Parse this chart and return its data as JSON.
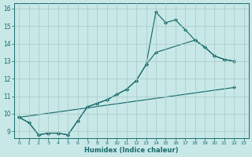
{
  "xlabel": "Humidex (Indice chaleur)",
  "xlim": [
    -0.5,
    23.5
  ],
  "ylim": [
    8.6,
    16.3
  ],
  "yticks": [
    9,
    10,
    11,
    12,
    13,
    14,
    15,
    16
  ],
  "xticks": [
    0,
    1,
    2,
    3,
    4,
    5,
    6,
    7,
    8,
    9,
    10,
    11,
    12,
    13,
    14,
    15,
    16,
    17,
    18,
    19,
    20,
    21,
    22,
    23
  ],
  "bg_color": "#c8e8e8",
  "grid_color": "#a8c8c8",
  "line_color": "#1a6b6b",
  "curve1_x": [
    0,
    1,
    2,
    3,
    4,
    5,
    6,
    7,
    8,
    9,
    10,
    11,
    12,
    13,
    14,
    15,
    16,
    17,
    18,
    19,
    20,
    21,
    22
  ],
  "curve1_y": [
    9.8,
    9.5,
    8.8,
    8.9,
    8.9,
    8.8,
    9.6,
    10.4,
    10.6,
    10.8,
    11.1,
    11.4,
    11.9,
    12.8,
    15.8,
    15.2,
    15.35,
    14.8,
    14.2,
    13.8,
    13.3,
    13.1,
    13.0
  ],
  "curve2_x": [
    0,
    1,
    2,
    3,
    4,
    5,
    6,
    7,
    8,
    9,
    10,
    11,
    12,
    13,
    14,
    18,
    19,
    20,
    21,
    22
  ],
  "curve2_y": [
    9.8,
    9.5,
    8.8,
    8.9,
    8.9,
    8.8,
    9.6,
    10.4,
    10.6,
    10.8,
    11.1,
    11.4,
    11.9,
    12.8,
    13.5,
    14.2,
    13.8,
    13.3,
    13.1,
    13.0
  ],
  "curve3_x": [
    0,
    22
  ],
  "curve3_y": [
    9.8,
    11.5
  ],
  "curve4_x": [
    14,
    18,
    22
  ],
  "curve4_y": [
    13.5,
    14.2,
    13.0
  ],
  "lw": 0.85,
  "ms": 2.5
}
